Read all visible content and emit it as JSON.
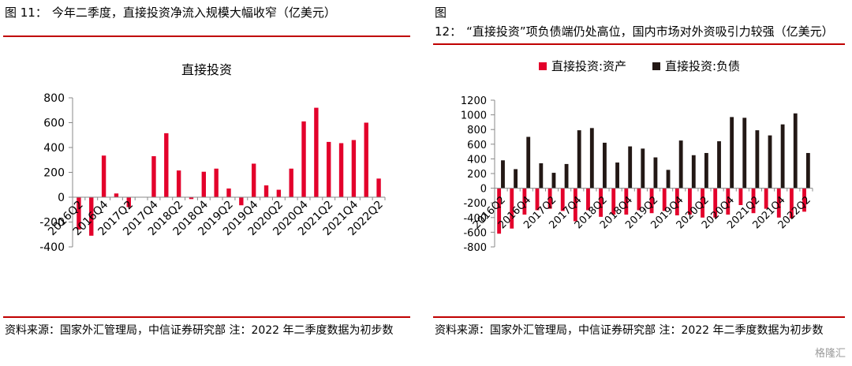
{
  "left": {
    "fig_label": "图 11：",
    "fig_title": "今年二季度，直接投资净流入规模大幅收窄（亿美元）",
    "source": "资料来源：国家外汇管理局，中信证券研究部 注：2022 年二季度数据为初步数"
  },
  "right": {
    "fig_label": "图 12：",
    "fig_title": "“直接投资”项负债端仍处高位，国内市场对外资吸引力较强（亿美元）",
    "source": "资料来源：国家外汇管理局，中信证券研究部 注：2022 年二季度数据为初步数"
  },
  "watermark": "格隆汇",
  "colors": {
    "red": "#e3002b",
    "black": "#231815",
    "rule": "#c00000"
  },
  "chart_data": [
    {
      "type": "bar",
      "title": "直接投资",
      "categories": [
        "2016Q2",
        "2016Q3",
        "2016Q4",
        "2017Q1",
        "2017Q2",
        "2017Q3",
        "2017Q4",
        "2018Q1",
        "2018Q2",
        "2018Q3",
        "2018Q4",
        "2019Q1",
        "2019Q2",
        "2019Q3",
        "2019Q4",
        "2020Q1",
        "2020Q2",
        "2020Q3",
        "2020Q4",
        "2021Q1",
        "2021Q2",
        "2021Q3",
        "2021Q4",
        "2022Q1",
        "2022Q2"
      ],
      "tick_labels": [
        "2016Q2",
        "2016Q4",
        "2017Q2",
        "2017Q4",
        "2018Q2",
        "2018Q4",
        "2019Q2",
        "2019Q4",
        "2020Q2",
        "2020Q4",
        "2021Q2",
        "2021Q4",
        "2022Q2"
      ],
      "values": [
        -260,
        -310,
        335,
        30,
        -80,
        0,
        330,
        515,
        215,
        -15,
        205,
        230,
        70,
        -65,
        270,
        95,
        60,
        230,
        610,
        720,
        445,
        435,
        460,
        600,
        150
      ],
      "ylim": [
        -400,
        800
      ],
      "yticks": [
        -400,
        -200,
        0,
        200,
        400,
        600,
        800
      ],
      "xlabel": "",
      "ylabel": ""
    },
    {
      "type": "bar",
      "categories": [
        "2016Q2",
        "2016Q3",
        "2016Q4",
        "2017Q1",
        "2017Q2",
        "2017Q3",
        "2017Q4",
        "2018Q1",
        "2018Q2",
        "2018Q3",
        "2018Q4",
        "2019Q1",
        "2019Q2",
        "2019Q3",
        "2019Q4",
        "2020Q1",
        "2020Q2",
        "2020Q3",
        "2020Q4",
        "2021Q1",
        "2021Q2",
        "2021Q3",
        "2021Q4",
        "2022Q1",
        "2022Q2"
      ],
      "tick_labels": [
        "2016Q2",
        "2016Q4",
        "2017Q2",
        "2017Q4",
        "2018Q2",
        "2018Q4",
        "2019Q2",
        "2019Q4",
        "2020Q2",
        "2020Q4",
        "2021Q2",
        "2021Q4",
        "2022Q2"
      ],
      "series": [
        {
          "name": "直接投资:资产",
          "values": [
            -620,
            -550,
            -360,
            -300,
            -280,
            -310,
            -450,
            -300,
            -390,
            -360,
            -360,
            -300,
            -340,
            -310,
            -370,
            -360,
            -400,
            -400,
            -360,
            -230,
            -340,
            -280,
            -400,
            -410,
            -320
          ]
        },
        {
          "name": "直接投资:负债",
          "values": [
            380,
            260,
            700,
            340,
            210,
            330,
            790,
            820,
            620,
            350,
            570,
            540,
            420,
            250,
            650,
            450,
            480,
            640,
            970,
            960,
            790,
            720,
            870,
            1020,
            480
          ]
        }
      ],
      "ylim": [
        -800,
        1200
      ],
      "yticks": [
        -800,
        -600,
        -400,
        -200,
        0,
        200,
        400,
        600,
        800,
        1000,
        1200
      ],
      "legend_position": "top",
      "xlabel": "",
      "ylabel": ""
    }
  ]
}
